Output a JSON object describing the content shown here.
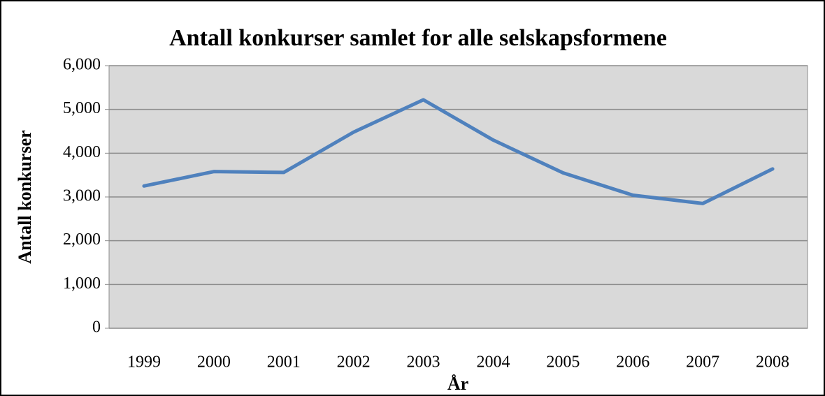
{
  "chart_data": {
    "type": "line",
    "title": "Antall konkurser samlet for alle selskapsformene",
    "x_label": "År",
    "y_label": "Antall konkurser",
    "categories": [
      "1999",
      "2000",
      "2001",
      "2002",
      "2003",
      "2004",
      "2005",
      "2006",
      "2007",
      "2008"
    ],
    "series": [
      {
        "name": "Antall konkurser",
        "color": "#4f81bd",
        "values": [
          3250,
          3580,
          3560,
          4480,
          5220,
          4300,
          3550,
          3040,
          2850,
          3640
        ]
      }
    ],
    "ylim": [
      0,
      6000
    ],
    "yticks": [
      0,
      {
        "value": 1000,
        "label": "1,000"
      },
      {
        "value": 2000,
        "label": "2,000"
      },
      {
        "value": 3000,
        "label": "3,000"
      },
      {
        "value": 4000,
        "label": "4,000"
      },
      {
        "value": 5000,
        "label": "5,000"
      },
      {
        "value": 6000,
        "label": "6,000"
      }
    ],
    "grid": true,
    "plot_background": "#d9d9d9"
  }
}
